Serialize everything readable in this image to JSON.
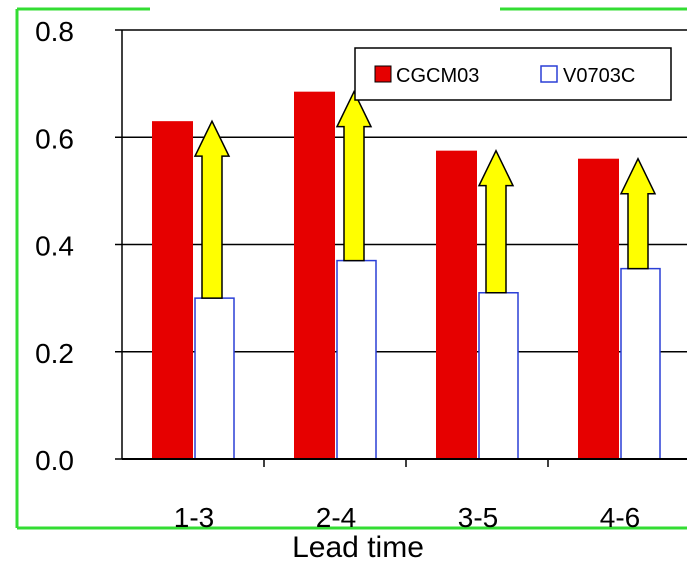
{
  "chart_data": {
    "type": "bar",
    "categories": [
      "1-3",
      "2-4",
      "3-5",
      "4-6"
    ],
    "series": [
      {
        "name": "CGCM03",
        "values": [
          0.63,
          0.685,
          0.575,
          0.56
        ],
        "color": "#e60000"
      },
      {
        "name": "V0703C",
        "values": [
          0.3,
          0.37,
          0.31,
          0.355
        ],
        "color": "#ffffff",
        "stroke": "#2a3fd6"
      }
    ],
    "improvement_arrows": [
      {
        "category": "1-3",
        "from": 0.3,
        "to": 0.63
      },
      {
        "category": "2-4",
        "from": 0.37,
        "to": 0.685
      },
      {
        "category": "3-5",
        "from": 0.31,
        "to": 0.575
      },
      {
        "category": "4-6",
        "from": 0.355,
        "to": 0.56
      }
    ],
    "arrow_color": "#ffff00",
    "ylim": [
      0.0,
      0.8
    ],
    "yticks": [
      "0.0",
      "0.2",
      "0.4",
      "0.6",
      "0.8"
    ],
    "xlabel": "Lead time",
    "grid": true,
    "legend_position": "top-right",
    "frame_color": "#33dd33"
  }
}
